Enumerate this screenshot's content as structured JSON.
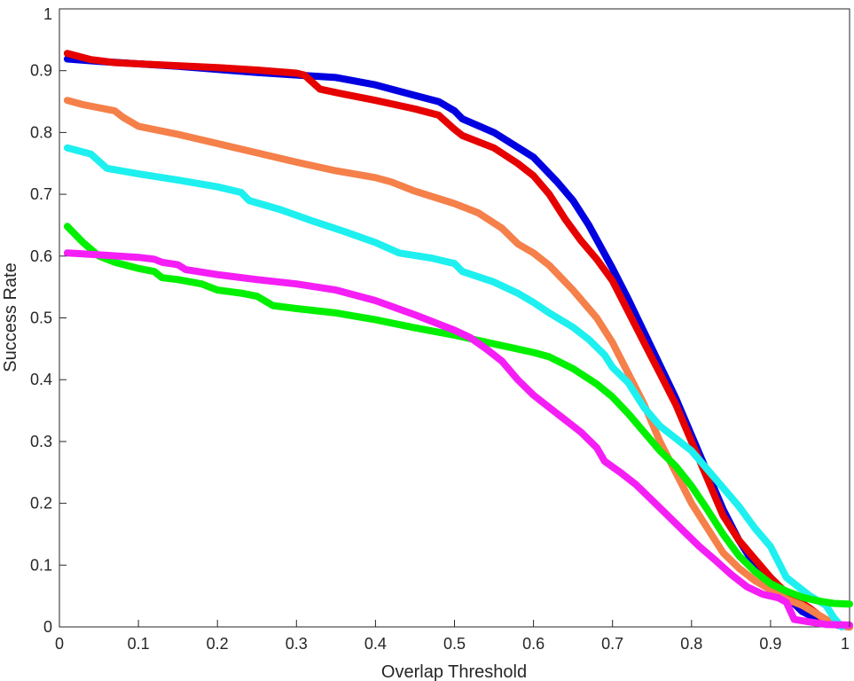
{
  "chart_data": {
    "type": "line",
    "title": "",
    "xlabel": "Overlap Threshold",
    "ylabel": "Success Rate",
    "xlim": [
      0,
      1
    ],
    "ylim": [
      0,
      1
    ],
    "xticks": [
      0,
      0.1,
      0.2,
      0.3,
      0.4,
      0.5,
      0.6,
      0.7,
      0.8,
      0.9,
      1
    ],
    "yticks": [
      0,
      0.1,
      0.2,
      0.3,
      0.4,
      0.5,
      0.6,
      0.7,
      0.8,
      0.9,
      1
    ],
    "xtick_labels": [
      "0",
      "0.1",
      "0.2",
      "0.3",
      "0.4",
      "0.5",
      "0.6",
      "0.7",
      "0.8",
      "0.9",
      "1"
    ],
    "ytick_labels": [
      "0",
      "0.1",
      "0.2",
      "0.3",
      "0.4",
      "0.5",
      "0.6",
      "0.7",
      "0.8",
      "0.9",
      "1"
    ],
    "grid": false,
    "legend": "none",
    "series": [
      {
        "color": "#0000e0",
        "points": [
          [
            0.01,
            0.919
          ],
          [
            0.05,
            0.915
          ],
          [
            0.1,
            0.911
          ],
          [
            0.15,
            0.907
          ],
          [
            0.2,
            0.902
          ],
          [
            0.25,
            0.897
          ],
          [
            0.3,
            0.893
          ],
          [
            0.35,
            0.889
          ],
          [
            0.4,
            0.877
          ],
          [
            0.45,
            0.86
          ],
          [
            0.48,
            0.85
          ],
          [
            0.5,
            0.835
          ],
          [
            0.51,
            0.822
          ],
          [
            0.55,
            0.8
          ],
          [
            0.6,
            0.76
          ],
          [
            0.63,
            0.72
          ],
          [
            0.65,
            0.69
          ],
          [
            0.67,
            0.65
          ],
          [
            0.7,
            0.58
          ],
          [
            0.72,
            0.53
          ],
          [
            0.75,
            0.45
          ],
          [
            0.78,
            0.37
          ],
          [
            0.8,
            0.31
          ],
          [
            0.82,
            0.25
          ],
          [
            0.84,
            0.19
          ],
          [
            0.86,
            0.14
          ],
          [
            0.88,
            0.1
          ],
          [
            0.9,
            0.07
          ],
          [
            0.92,
            0.05
          ],
          [
            0.94,
            0.025
          ],
          [
            0.96,
            0.012
          ],
          [
            0.98,
            0.004
          ],
          [
            1.0,
            0.0
          ]
        ]
      },
      {
        "color": "#e60000",
        "points": [
          [
            0.01,
            0.928
          ],
          [
            0.04,
            0.918
          ],
          [
            0.07,
            0.913
          ],
          [
            0.1,
            0.911
          ],
          [
            0.15,
            0.908
          ],
          [
            0.2,
            0.905
          ],
          [
            0.25,
            0.901
          ],
          [
            0.3,
            0.896
          ],
          [
            0.31,
            0.893
          ],
          [
            0.33,
            0.87
          ],
          [
            0.36,
            0.862
          ],
          [
            0.4,
            0.852
          ],
          [
            0.45,
            0.838
          ],
          [
            0.48,
            0.828
          ],
          [
            0.5,
            0.805
          ],
          [
            0.51,
            0.795
          ],
          [
            0.55,
            0.775
          ],
          [
            0.58,
            0.75
          ],
          [
            0.6,
            0.73
          ],
          [
            0.62,
            0.7
          ],
          [
            0.64,
            0.66
          ],
          [
            0.66,
            0.625
          ],
          [
            0.68,
            0.595
          ],
          [
            0.7,
            0.56
          ],
          [
            0.72,
            0.51
          ],
          [
            0.74,
            0.46
          ],
          [
            0.76,
            0.41
          ],
          [
            0.78,
            0.36
          ],
          [
            0.8,
            0.3
          ],
          [
            0.82,
            0.24
          ],
          [
            0.84,
            0.18
          ],
          [
            0.86,
            0.14
          ],
          [
            0.88,
            0.11
          ],
          [
            0.9,
            0.08
          ],
          [
            0.92,
            0.055
          ],
          [
            0.95,
            0.03
          ],
          [
            0.97,
            0.01
          ],
          [
            1.0,
            0.0
          ]
        ]
      },
      {
        "color": "#f5804a",
        "points": [
          [
            0.01,
            0.852
          ],
          [
            0.03,
            0.845
          ],
          [
            0.05,
            0.84
          ],
          [
            0.07,
            0.835
          ],
          [
            0.08,
            0.825
          ],
          [
            0.1,
            0.81
          ],
          [
            0.15,
            0.797
          ],
          [
            0.2,
            0.782
          ],
          [
            0.25,
            0.767
          ],
          [
            0.3,
            0.752
          ],
          [
            0.35,
            0.738
          ],
          [
            0.4,
            0.727
          ],
          [
            0.42,
            0.72
          ],
          [
            0.45,
            0.705
          ],
          [
            0.5,
            0.685
          ],
          [
            0.53,
            0.67
          ],
          [
            0.56,
            0.645
          ],
          [
            0.58,
            0.62
          ],
          [
            0.6,
            0.605
          ],
          [
            0.62,
            0.585
          ],
          [
            0.65,
            0.545
          ],
          [
            0.68,
            0.5
          ],
          [
            0.7,
            0.46
          ],
          [
            0.72,
            0.41
          ],
          [
            0.74,
            0.36
          ],
          [
            0.76,
            0.3
          ],
          [
            0.78,
            0.25
          ],
          [
            0.8,
            0.2
          ],
          [
            0.82,
            0.16
          ],
          [
            0.84,
            0.12
          ],
          [
            0.86,
            0.095
          ],
          [
            0.88,
            0.075
          ],
          [
            0.9,
            0.06
          ],
          [
            0.92,
            0.045
          ],
          [
            0.94,
            0.035
          ],
          [
            0.96,
            0.02
          ],
          [
            0.98,
            0.005
          ],
          [
            1.0,
            0.0
          ]
        ]
      },
      {
        "color": "#1ef0f0",
        "points": [
          [
            0.01,
            0.775
          ],
          [
            0.04,
            0.765
          ],
          [
            0.06,
            0.742
          ],
          [
            0.1,
            0.733
          ],
          [
            0.15,
            0.723
          ],
          [
            0.2,
            0.712
          ],
          [
            0.23,
            0.703
          ],
          [
            0.24,
            0.69
          ],
          [
            0.28,
            0.675
          ],
          [
            0.32,
            0.657
          ],
          [
            0.36,
            0.64
          ],
          [
            0.4,
            0.622
          ],
          [
            0.43,
            0.605
          ],
          [
            0.47,
            0.597
          ],
          [
            0.5,
            0.588
          ],
          [
            0.51,
            0.575
          ],
          [
            0.55,
            0.558
          ],
          [
            0.58,
            0.54
          ],
          [
            0.6,
            0.525
          ],
          [
            0.62,
            0.508
          ],
          [
            0.65,
            0.485
          ],
          [
            0.67,
            0.465
          ],
          [
            0.69,
            0.44
          ],
          [
            0.7,
            0.42
          ],
          [
            0.72,
            0.395
          ],
          [
            0.74,
            0.355
          ],
          [
            0.76,
            0.325
          ],
          [
            0.78,
            0.305
          ],
          [
            0.8,
            0.285
          ],
          [
            0.82,
            0.255
          ],
          [
            0.84,
            0.225
          ],
          [
            0.86,
            0.195
          ],
          [
            0.88,
            0.16
          ],
          [
            0.9,
            0.13
          ],
          [
            0.91,
            0.105
          ],
          [
            0.92,
            0.08
          ],
          [
            0.93,
            0.07
          ],
          [
            0.95,
            0.05
          ],
          [
            0.97,
            0.035
          ],
          [
            0.98,
            0.015
          ],
          [
            0.99,
            0.0
          ]
        ]
      },
      {
        "color": "#00f000",
        "points": [
          [
            0.01,
            0.648
          ],
          [
            0.03,
            0.622
          ],
          [
            0.05,
            0.6
          ],
          [
            0.07,
            0.59
          ],
          [
            0.1,
            0.58
          ],
          [
            0.12,
            0.575
          ],
          [
            0.13,
            0.565
          ],
          [
            0.15,
            0.562
          ],
          [
            0.18,
            0.555
          ],
          [
            0.2,
            0.545
          ],
          [
            0.23,
            0.54
          ],
          [
            0.25,
            0.535
          ],
          [
            0.27,
            0.52
          ],
          [
            0.3,
            0.515
          ],
          [
            0.35,
            0.508
          ],
          [
            0.4,
            0.497
          ],
          [
            0.45,
            0.484
          ],
          [
            0.5,
            0.472
          ],
          [
            0.55,
            0.458
          ],
          [
            0.6,
            0.444
          ],
          [
            0.62,
            0.437
          ],
          [
            0.65,
            0.418
          ],
          [
            0.68,
            0.393
          ],
          [
            0.7,
            0.372
          ],
          [
            0.72,
            0.345
          ],
          [
            0.74,
            0.315
          ],
          [
            0.76,
            0.285
          ],
          [
            0.78,
            0.26
          ],
          [
            0.8,
            0.228
          ],
          [
            0.82,
            0.19
          ],
          [
            0.84,
            0.15
          ],
          [
            0.86,
            0.115
          ],
          [
            0.88,
            0.09
          ],
          [
            0.9,
            0.07
          ],
          [
            0.92,
            0.058
          ],
          [
            0.94,
            0.048
          ],
          [
            0.96,
            0.042
          ],
          [
            0.98,
            0.038
          ],
          [
            1.0,
            0.037
          ]
        ]
      },
      {
        "color": "#f51ef5",
        "points": [
          [
            0.01,
            0.605
          ],
          [
            0.05,
            0.602
          ],
          [
            0.1,
            0.598
          ],
          [
            0.12,
            0.595
          ],
          [
            0.13,
            0.59
          ],
          [
            0.15,
            0.586
          ],
          [
            0.16,
            0.578
          ],
          [
            0.2,
            0.57
          ],
          [
            0.25,
            0.562
          ],
          [
            0.3,
            0.555
          ],
          [
            0.35,
            0.545
          ],
          [
            0.4,
            0.528
          ],
          [
            0.45,
            0.505
          ],
          [
            0.47,
            0.495
          ],
          [
            0.5,
            0.48
          ],
          [
            0.52,
            0.468
          ],
          [
            0.54,
            0.45
          ],
          [
            0.56,
            0.43
          ],
          [
            0.58,
            0.4
          ],
          [
            0.6,
            0.375
          ],
          [
            0.63,
            0.345
          ],
          [
            0.66,
            0.315
          ],
          [
            0.68,
            0.29
          ],
          [
            0.69,
            0.268
          ],
          [
            0.71,
            0.25
          ],
          [
            0.73,
            0.23
          ],
          [
            0.75,
            0.205
          ],
          [
            0.77,
            0.18
          ],
          [
            0.79,
            0.155
          ],
          [
            0.81,
            0.13
          ],
          [
            0.83,
            0.108
          ],
          [
            0.85,
            0.085
          ],
          [
            0.87,
            0.065
          ],
          [
            0.89,
            0.053
          ],
          [
            0.91,
            0.047
          ],
          [
            0.92,
            0.04
          ],
          [
            0.93,
            0.012
          ],
          [
            0.95,
            0.008
          ],
          [
            0.97,
            0.004
          ],
          [
            1.0,
            0.003
          ]
        ]
      }
    ]
  }
}
